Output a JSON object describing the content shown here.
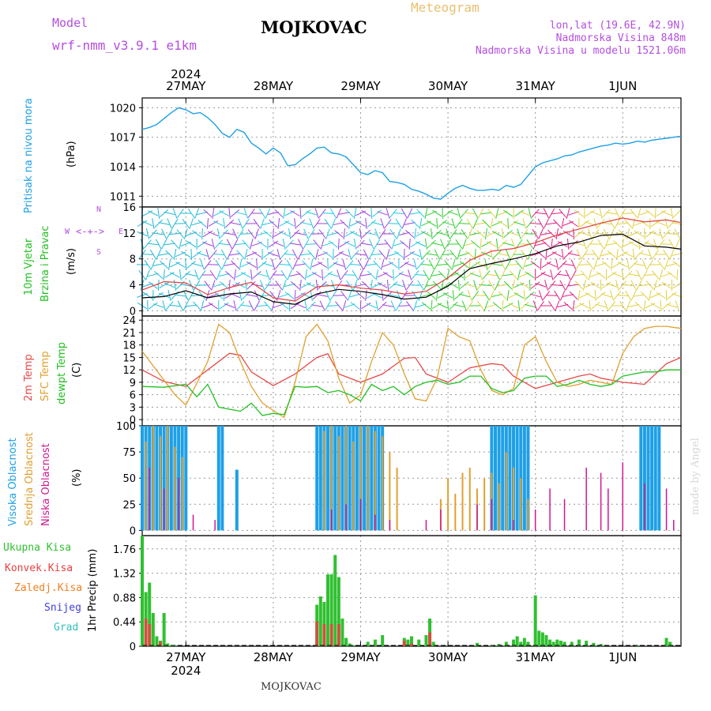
{
  "header": {
    "model_label": "Model",
    "model_name": "wrf-nmm_v3.9.1 e1km",
    "station": "MOJKOVAC",
    "product": "Meteogram",
    "coords": "lon,lat (19.6E, 42.9N)",
    "elevation": "Nadmorska Visina 848m",
    "model_elevation": "Nadmorska Visina u modelu 1521.06m",
    "footer_station": "MOJKOVAC",
    "credit": "made by Angel"
  },
  "colors": {
    "pressure": "#1ea0e6",
    "wind_speed": "#000000",
    "wind_gust": "#e04040",
    "temp_2m": "#e84848",
    "temp_sfc": "#e0a030",
    "dewpoint": "#20c020",
    "cloud_high": "#1ea0e6",
    "cloud_mid": "#e0a030",
    "cloud_low": "#d01890",
    "precip_total": "#30c030",
    "precip_conv": "#e84040",
    "precip_frozen": "#f08020",
    "snow": "#4040e0",
    "hail": "#30c0c0",
    "label_violet": "#b44ee0"
  },
  "time_axis": {
    "year_top": "2024",
    "year_bottom": "2024",
    "days": [
      "27MAY",
      "28MAY",
      "29MAY",
      "30MAY",
      "31MAY",
      "1JUN"
    ]
  },
  "legends": {
    "pressure": [
      "Pritisak na nivou mora",
      "(hPa)"
    ],
    "wind": [
      "10m Vjetar",
      "Brzina i Pravac",
      "(m/s)"
    ],
    "wind_compass": {
      "n": "N",
      "s": "S",
      "e": "E",
      "w": "W"
    },
    "temp": [
      "2m Temp",
      "SFC Temp",
      "dewpt Temp",
      "(C)"
    ],
    "cloud": [
      "Visoka Oblacnost",
      "Srednja Oblacnost",
      "Niska Oblacnost",
      "(%)"
    ],
    "precip": [
      "Ukupna Kisa",
      "Konvek.Kisa",
      "Zaledj.Kisa",
      "Snijeg",
      "Grad"
    ],
    "precip_axis": "1hr Precip (mm)"
  },
  "chart_data": [
    {
      "type": "line",
      "panel": "pressure",
      "x_unit": "hours since 27MAY 00h",
      "x_range": [
        -12,
        136
      ],
      "yticks": [
        "1011",
        "1014",
        "1017",
        "1020"
      ],
      "ylim": [
        1009.9,
        1021.0
      ],
      "series": [
        {
          "x": [
            -12,
            -10,
            -8,
            -6,
            -4,
            -2,
            0,
            2,
            4,
            6,
            8,
            10,
            12,
            14,
            16,
            18,
            20,
            22,
            24,
            26,
            28,
            30,
            32,
            34,
            36,
            38,
            40,
            42,
            44,
            46,
            48,
            50,
            52,
            54,
            56,
            58,
            60,
            62,
            64,
            66,
            68,
            70,
            72,
            74,
            76,
            78,
            80,
            82,
            84,
            86,
            88,
            90,
            92,
            94,
            96,
            98,
            100,
            102,
            104,
            106,
            108,
            110,
            112,
            114,
            116,
            118,
            120,
            122,
            124,
            126,
            128,
            130,
            132,
            134,
            136
          ],
          "values": [
            1017.8,
            1018.0,
            1018.3,
            1018.9,
            1019.5,
            1020.0,
            1019.8,
            1019.4,
            1019.5,
            1019.0,
            1018.3,
            1017.4,
            1017.0,
            1017.8,
            1017.5,
            1016.4,
            1015.9,
            1015.3,
            1015.9,
            1015.4,
            1014.1,
            1014.2,
            1014.8,
            1015.3,
            1015.9,
            1016.0,
            1015.4,
            1015.3,
            1015.0,
            1014.2,
            1013.4,
            1013.2,
            1013.6,
            1013.4,
            1012.5,
            1012.4,
            1012.2,
            1011.7,
            1011.5,
            1011.2,
            1010.8,
            1010.7,
            1011.3,
            1011.8,
            1012.1,
            1011.8,
            1011.6,
            1011.6,
            1011.7,
            1011.6,
            1012.1,
            1011.9,
            1012.2,
            1013.1,
            1014.0,
            1014.4,
            1014.6,
            1014.8,
            1015.1,
            1015.2,
            1015.5,
            1015.7,
            1015.9,
            1016.1,
            1016.2,
            1016.4,
            1016.3,
            1016.4,
            1016.6,
            1016.5,
            1016.7,
            1016.8,
            1016.9,
            1017.0,
            1017.1
          ]
        }
      ]
    },
    {
      "type": "line",
      "panel": "wind",
      "x_unit": "hours since 27MAY 00h",
      "yticks": [
        "0",
        "4",
        "8",
        "12",
        "16"
      ],
      "ylim": [
        -0.8,
        16
      ],
      "series": [
        {
          "name": "speed",
          "x": [
            -12,
            -6,
            0,
            6,
            12,
            18,
            24,
            30,
            36,
            42,
            48,
            54,
            60,
            66,
            72,
            78,
            84,
            90,
            96,
            102,
            108,
            114,
            120,
            126,
            132,
            136
          ],
          "values": [
            2.0,
            2.2,
            3.1,
            2.0,
            2.6,
            2.9,
            1.4,
            1.0,
            2.6,
            3.3,
            3.0,
            2.5,
            1.8,
            2.1,
            3.8,
            6.5,
            7.3,
            8.0,
            8.8,
            10.0,
            10.6,
            11.6,
            11.8,
            10.0,
            9.8,
            9.5
          ]
        },
        {
          "name": "gust",
          "x": [
            -12,
            -6,
            0,
            6,
            12,
            18,
            24,
            30,
            36,
            42,
            48,
            54,
            60,
            66,
            72,
            78,
            84,
            90,
            96,
            102,
            108,
            114,
            120,
            126,
            132,
            136
          ],
          "values": [
            3.2,
            4.5,
            4.3,
            2.5,
            3.6,
            4.4,
            2.0,
            1.5,
            3.7,
            4.0,
            3.5,
            3.2,
            2.6,
            3.0,
            5.1,
            7.8,
            9.2,
            9.6,
            10.5,
            11.7,
            12.6,
            13.5,
            14.3,
            13.7,
            14.0,
            13.6
          ]
        }
      ]
    },
    {
      "type": "line",
      "panel": "temperature",
      "x_unit": "hours since 27MAY 00h",
      "yticks": [
        "0",
        "3",
        "6",
        "9",
        "12",
        "15",
        "18",
        "21",
        "24"
      ],
      "ylim": [
        -1.5,
        25
      ],
      "series": [
        {
          "name": "2m Temp",
          "x": [
            -12,
            -6,
            0,
            6,
            12,
            15,
            18,
            24,
            30,
            36,
            39,
            42,
            48,
            54,
            60,
            63,
            66,
            72,
            78,
            84,
            87,
            90,
            96,
            102,
            108,
            111,
            114,
            120,
            126,
            132,
            136
          ],
          "values": [
            12.0,
            9.2,
            8.0,
            12.0,
            16.0,
            15.5,
            11.5,
            8.2,
            11.0,
            15.0,
            15.9,
            11.0,
            9.0,
            11.0,
            14.8,
            15.0,
            11.0,
            9.0,
            12.5,
            13.5,
            13.2,
            10.5,
            7.5,
            9.0,
            10.5,
            11.0,
            10.0,
            9.0,
            8.5,
            13.5,
            15.0
          ]
        },
        {
          "name": "SFC Temp",
          "x": [
            -12,
            -6,
            -3,
            0,
            6,
            9,
            12,
            15,
            18,
            21,
            24,
            27,
            30,
            33,
            36,
            39,
            42,
            45,
            48,
            51,
            54,
            57,
            60,
            63,
            66,
            69,
            72,
            75,
            78,
            81,
            84,
            87,
            90,
            93,
            96,
            99,
            102,
            105,
            108,
            111,
            114,
            117,
            120,
            123,
            126,
            129,
            132,
            136
          ],
          "values": [
            16.5,
            9.5,
            6.0,
            3.5,
            14.0,
            23.0,
            21.0,
            14.0,
            8.0,
            4.0,
            2.2,
            0.5,
            9.0,
            20.0,
            23.0,
            19.0,
            10.0,
            4.0,
            6.0,
            14.0,
            21.0,
            18.0,
            11.0,
            5.0,
            4.5,
            10.0,
            22.0,
            20.0,
            19.0,
            12.0,
            7.0,
            6.0,
            7.5,
            18.0,
            20.0,
            14.0,
            9.0,
            8.0,
            8.5,
            9.5,
            9.0,
            8.5,
            16.0,
            20.0,
            22.0,
            22.5,
            22.5,
            22.0
          ]
        },
        {
          "name": "dewpt Temp",
          "x": [
            -12,
            -6,
            0,
            3,
            6,
            9,
            12,
            15,
            18,
            21,
            24,
            27,
            30,
            33,
            36,
            39,
            42,
            45,
            48,
            51,
            54,
            57,
            60,
            63,
            66,
            69,
            72,
            75,
            78,
            81,
            84,
            87,
            90,
            93,
            96,
            99,
            102,
            105,
            108,
            111,
            114,
            117,
            120,
            123,
            126,
            129,
            132,
            136
          ],
          "values": [
            8.0,
            7.8,
            8.5,
            5.5,
            8.5,
            3.0,
            2.5,
            2.0,
            4.0,
            1.0,
            1.5,
            1.2,
            8.0,
            7.8,
            8.0,
            6.5,
            7.0,
            6.0,
            4.5,
            8.5,
            7.0,
            8.0,
            6.0,
            8.0,
            9.0,
            9.5,
            8.5,
            9.0,
            10.5,
            10.5,
            7.5,
            6.5,
            7.0,
            10.0,
            10.5,
            10.5,
            8.0,
            8.5,
            9.5,
            8.5,
            8.0,
            8.5,
            10.5,
            11.0,
            11.5,
            11.5,
            12.0,
            12.0
          ]
        }
      ]
    },
    {
      "type": "bar",
      "panel": "cloud cover",
      "x_unit": "hours since 27MAY 00h",
      "yticks": [
        "0",
        "25",
        "50",
        "75",
        "100"
      ],
      "ylim": [
        -5,
        100
      ],
      "series": [
        {
          "name": "Visoka Oblacnost",
          "x": [
            -12,
            -11,
            -10,
            -9,
            -8,
            -7,
            -6,
            -5,
            -4,
            -3,
            -2,
            -1,
            0,
            9,
            10,
            14,
            36,
            37,
            38,
            39,
            40,
            41,
            42,
            43,
            44,
            45,
            46,
            47,
            48,
            49,
            50,
            51,
            52,
            53,
            54,
            84,
            85,
            86,
            87,
            88,
            89,
            90,
            91,
            92,
            93,
            94,
            125,
            126,
            127,
            128,
            129,
            130
          ],
          "values": [
            100,
            100,
            100,
            100,
            100,
            100,
            100,
            100,
            100,
            100,
            100,
            100,
            100,
            100,
            100,
            58,
            100,
            100,
            100,
            100,
            100,
            100,
            100,
            100,
            100,
            100,
            100,
            100,
            100,
            100,
            100,
            100,
            100,
            100,
            100,
            100,
            100,
            100,
            100,
            100,
            100,
            100,
            100,
            100,
            100,
            100,
            100,
            100,
            100,
            100,
            100,
            100
          ]
        },
        {
          "name": "Srednja Oblacnost",
          "x": [
            -11,
            -9,
            -7,
            -5,
            -3,
            -1,
            38,
            40,
            42,
            44,
            46,
            48,
            50,
            52,
            54,
            56,
            58,
            70,
            72,
            74,
            76,
            78,
            80,
            82,
            84,
            86,
            88,
            90,
            92,
            94
          ],
          "values": [
            85,
            100,
            90,
            100,
            80,
            70,
            95,
            100,
            90,
            100,
            85,
            100,
            100,
            95,
            90,
            75,
            60,
            30,
            50,
            35,
            55,
            60,
            40,
            50,
            55,
            45,
            75,
            60,
            50,
            30
          ]
        },
        {
          "name": "Niska Oblacnost",
          "x": [
            -10,
            -6,
            -2,
            2,
            8,
            40,
            44,
            48,
            52,
            56,
            66,
            70,
            80,
            84,
            90,
            96,
            100,
            104,
            110,
            114,
            116,
            120,
            126,
            132,
            134
          ],
          "values": [
            60,
            40,
            50,
            15,
            10,
            20,
            25,
            30,
            15,
            10,
            10,
            20,
            25,
            30,
            10,
            20,
            40,
            30,
            60,
            55,
            40,
            65,
            45,
            40,
            10
          ]
        }
      ]
    },
    {
      "type": "bar",
      "panel": "precipitation",
      "x_unit": "hours since 27MAY 00h",
      "yticks": [
        "0",
        "0.44",
        "0.88",
        "1.32",
        "1.76"
      ],
      "ylim": [
        0,
        2.0
      ],
      "series": [
        {
          "name": "Ukupna Kisa",
          "x": [
            -12,
            -11,
            -10,
            -9,
            -8,
            -7,
            -6,
            -5,
            -4,
            -3,
            36,
            37,
            38,
            39,
            40,
            41,
            42,
            43,
            44,
            45,
            46,
            50,
            52,
            54,
            60,
            61,
            62,
            64,
            66,
            67,
            68,
            80,
            84,
            86,
            88,
            90,
            91,
            92,
            93,
            94,
            96,
            97,
            98,
            99,
            100,
            101,
            102,
            103,
            104,
            106,
            108,
            110,
            112,
            114,
            124,
            132,
            133
          ],
          "values": [
            2.0,
            0.98,
            1.15,
            0.6,
            0.18,
            0.1,
            0.6,
            0.05,
            0.02,
            0.02,
            0.75,
            0.9,
            0.8,
            1.3,
            1.3,
            1.65,
            1.25,
            0.5,
            0.15,
            0.05,
            0.02,
            0.08,
            0.12,
            0.2,
            0.15,
            0.12,
            0.18,
            0.12,
            0.2,
            0.5,
            0.08,
            0.06,
            0.02,
            0.04,
            0.08,
            0.12,
            0.18,
            0.08,
            0.15,
            0.08,
            0.92,
            0.28,
            0.25,
            0.2,
            0.12,
            0.08,
            0.12,
            0.1,
            0.08,
            0.08,
            0.12,
            0.1,
            0.06,
            0.04,
            0.02,
            0.15,
            0.08
          ]
        },
        {
          "name": "Konvek.Kisa",
          "x": [
            -11,
            -10,
            -7,
            36,
            38,
            40,
            42,
            60,
            62,
            67
          ],
          "values": [
            0.5,
            0.4,
            0.08,
            0.45,
            0.4,
            0.4,
            0.4,
            0.1,
            0.05,
            0.25
          ]
        }
      ]
    }
  ]
}
